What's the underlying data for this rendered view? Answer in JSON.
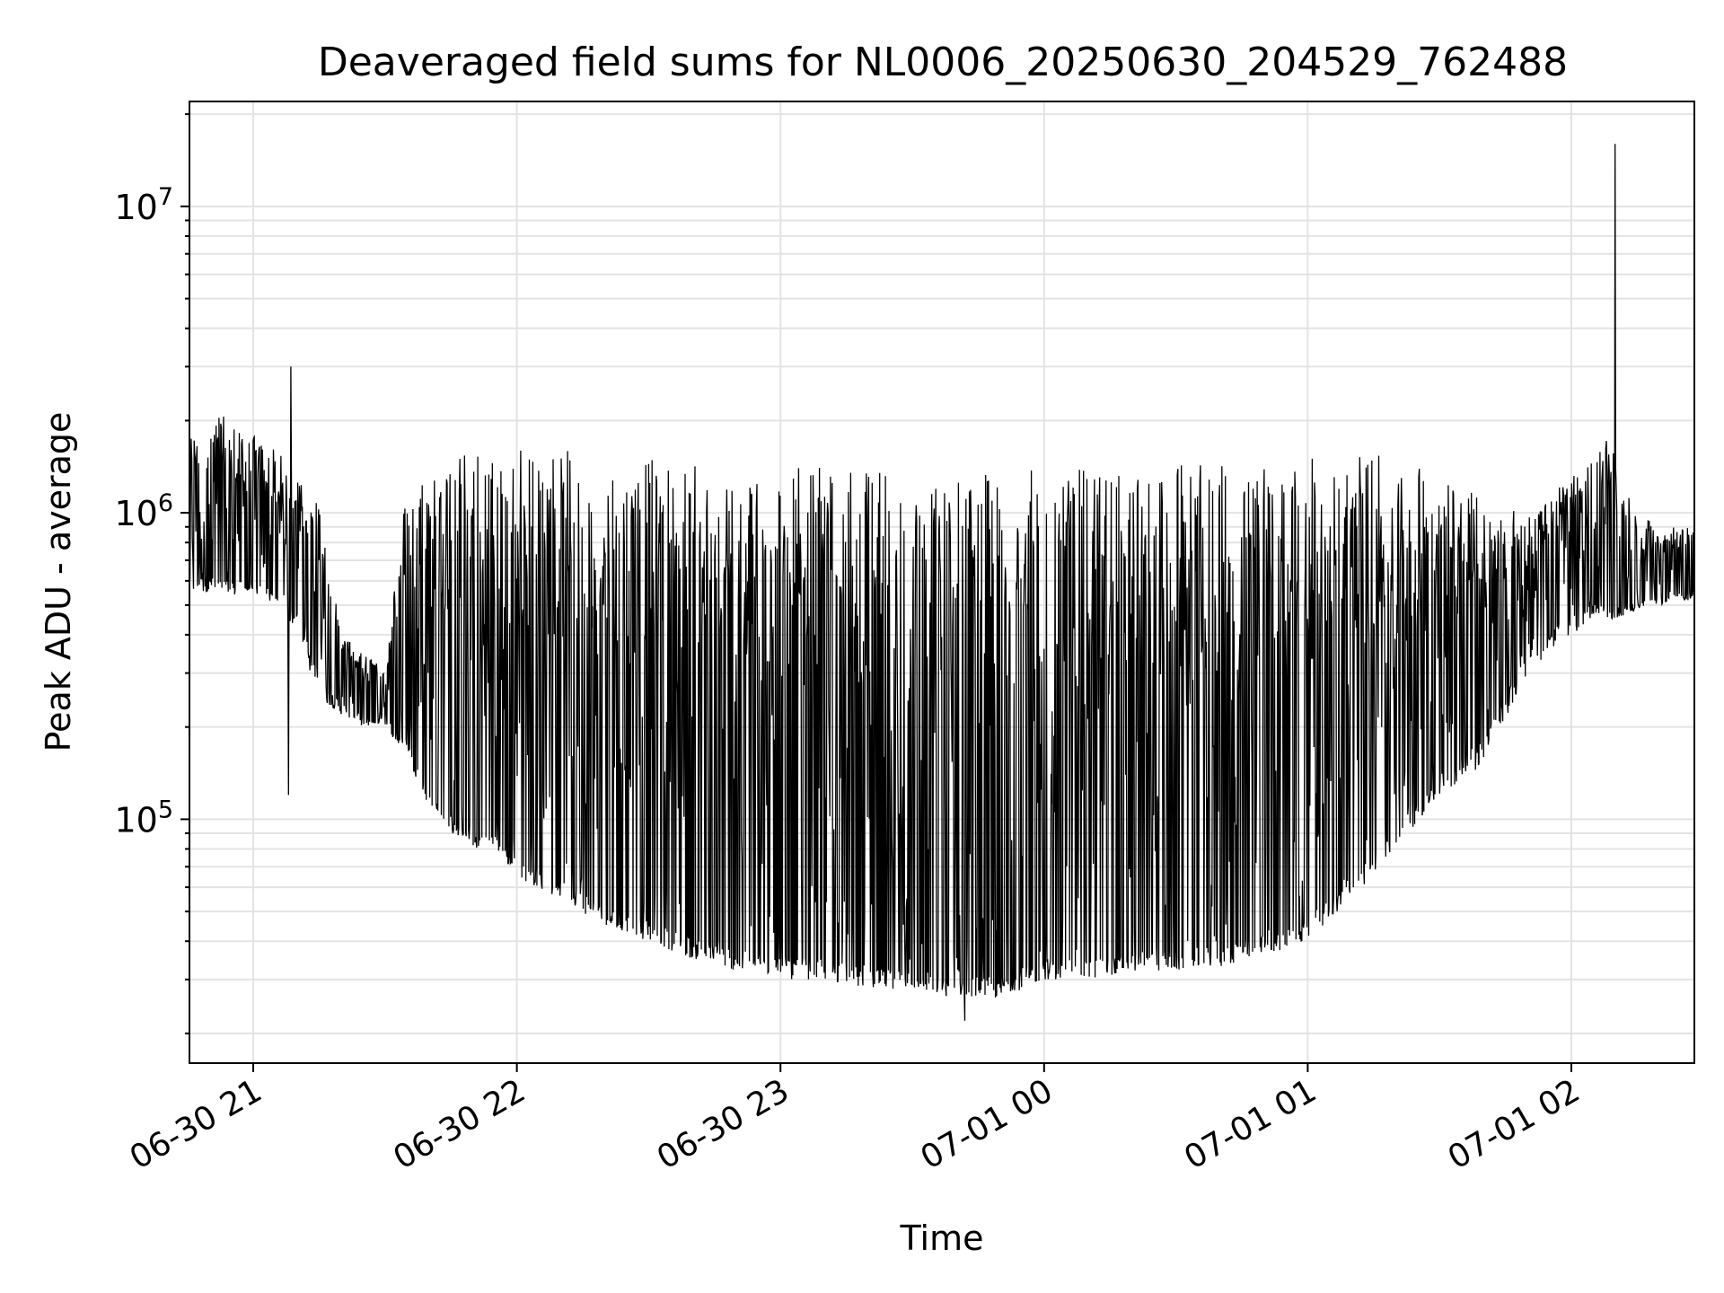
{
  "chart_data": {
    "type": "line",
    "title": "Deaveraged field sums for NL0006_20250630_204529_762488",
    "xlabel": "Time",
    "ylabel": "Peak ADU - average",
    "yscale": "log",
    "ylim": [
      16000,
      22000000
    ],
    "xlim": [
      "2025-06-30 20:45:29",
      "2025-07-01 02:28:00"
    ],
    "x_ticks": [
      {
        "t": "2025-06-30 21:00",
        "label": "06-30 21"
      },
      {
        "t": "2025-06-30 22:00",
        "label": "06-30 22"
      },
      {
        "t": "2025-06-30 23:00",
        "label": "06-30 23"
      },
      {
        "t": "2025-07-01 00:00",
        "label": "07-01 00"
      },
      {
        "t": "2025-07-01 01:00",
        "label": "07-01 01"
      },
      {
        "t": "2025-07-01 02:00",
        "label": "07-01 02"
      }
    ],
    "y_ticks": [
      {
        "value": 100000,
        "base": "10",
        "exp": "5"
      },
      {
        "value": 1000000,
        "base": "10",
        "exp": "6"
      },
      {
        "value": 10000000,
        "base": "10",
        "exp": "7"
      }
    ],
    "grid": true,
    "line_color": "#000000",
    "series": [
      {
        "x": [
          "2025-06-30 20:45:29",
          "2025-06-30 20:50:00",
          "2025-06-30 20:55:00",
          "2025-06-30 21:00:00",
          "2025-06-30 21:05:00",
          "2025-06-30 21:10:00",
          "2025-06-30 21:15:00",
          "2025-06-30 21:20:00",
          "2025-06-30 21:25:00",
          "2025-06-30 21:30:00",
          "2025-06-30 21:35:00",
          "2025-06-30 21:40:00",
          "2025-06-30 21:45:00",
          "2025-06-30 21:50:00",
          "2025-06-30 21:55:00",
          "2025-06-30 22:00:00",
          "2025-06-30 22:10:00",
          "2025-06-30 22:20:00",
          "2025-06-30 22:30:00",
          "2025-06-30 22:40:00",
          "2025-06-30 22:50:00",
          "2025-06-30 23:00:00",
          "2025-06-30 23:10:00",
          "2025-06-30 23:20:00",
          "2025-06-30 23:30:00",
          "2025-06-30 23:40:00",
          "2025-06-30 23:50:00",
          "2025-07-01 00:00:00",
          "2025-07-01 00:10:00",
          "2025-07-01 00:20:00",
          "2025-07-01 00:30:00",
          "2025-07-01 00:40:00",
          "2025-07-01 00:50:00",
          "2025-07-01 01:00:00",
          "2025-07-01 01:10:00",
          "2025-07-01 01:20:00",
          "2025-07-01 01:30:00",
          "2025-07-01 01:40:00",
          "2025-07-01 01:50:00",
          "2025-07-01 02:00:00",
          "2025-07-01 02:05:00",
          "2025-07-01 02:10:00",
          "2025-07-01 02:15:00",
          "2025-07-01 02:20:00",
          "2025-07-01 02:28:00"
        ],
        "baseline": [
          800000,
          800000,
          760000,
          700000,
          720000,
          700000,
          420000,
          300000,
          260000,
          260000,
          230000,
          160000,
          140000,
          120000,
          110000,
          100000,
          90000,
          70000,
          65000,
          60000,
          55000,
          55000,
          50000,
          45000,
          45000,
          45000,
          45000,
          50000,
          50000,
          50000,
          55000,
          55000,
          60000,
          70000,
          100000,
          120000,
          200000,
          300000,
          500000,
          700000,
          650000,
          600000,
          580000,
          600000,
          650000
        ],
        "upper": [
          1800000,
          2200000,
          2000000,
          1800000,
          1600000,
          1400000,
          1100000,
          400000,
          350000,
          330000,
          1300000,
          1400000,
          1500000,
          1650000,
          1600000,
          1700000,
          1600000,
          1600000,
          1500000,
          1450000,
          1450000,
          1450000,
          1400000,
          1400000,
          1350000,
          1350000,
          1350000,
          1400000,
          1400000,
          1400000,
          1450000,
          1450000,
          1450000,
          1500000,
          1600000,
          1500000,
          1400000,
          1100000,
          1000000,
          1300000,
          1600000,
          1800000,
          1000000,
          900000,
          900000
        ],
        "lower": [
          550000,
          550000,
          540000,
          550000,
          500000,
          400000,
          250000,
          220000,
          200000,
          200000,
          160000,
          110000,
          90000,
          80000,
          80000,
          65000,
          55000,
          45000,
          40000,
          35000,
          32000,
          30000,
          30000,
          28000,
          28000,
          26000,
          26000,
          30000,
          30000,
          32000,
          32000,
          33000,
          36000,
          40000,
          55000,
          80000,
          120000,
          150000,
          300000,
          400000,
          450000,
          450000,
          480000,
          500000,
          520000
        ],
        "spikes": [
          {
            "t": "2025-07-01 02:10:00",
            "value": 16000000
          },
          {
            "t": "2025-06-30 21:08:00",
            "value": 120000
          },
          {
            "t": "2025-06-30 23:42:00",
            "value": 22000
          },
          {
            "t": "2025-06-30 21:08:30",
            "value": 3000000
          }
        ]
      }
    ]
  }
}
